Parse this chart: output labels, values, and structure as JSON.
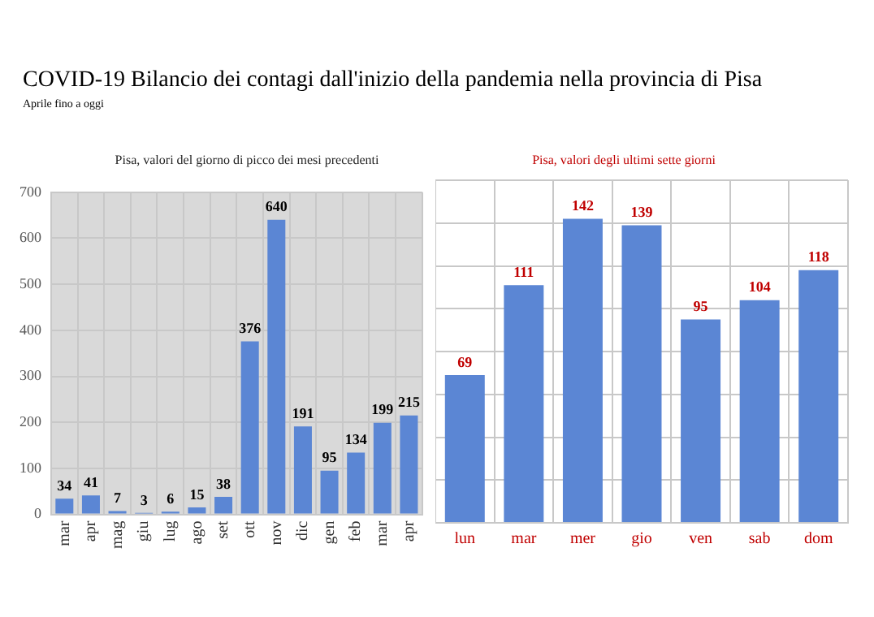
{
  "chart_data": [
    {
      "type": "other",
      "title": "COVID-19 Bilancio dei contagi dall'inizio della pandemia nella provincia di Pisa",
      "subtitle": "Aprile fino a oggi"
    },
    {
      "type": "bar",
      "title": "Pisa, valori del giorno di picco dei mesi precedenti",
      "categories": [
        "mar",
        "apr",
        "mag",
        "giu",
        "lug",
        "ago",
        "set",
        "ott",
        "nov",
        "dic",
        "gen",
        "feb",
        "mar",
        "apr"
      ],
      "values": [
        34,
        41,
        7,
        3,
        6,
        15,
        38,
        376,
        640,
        191,
        95,
        134,
        199,
        215
      ],
      "color": "#5b86d4",
      "ylim": [
        0,
        700
      ],
      "yticks": [
        0,
        100,
        200,
        300,
        400,
        500,
        600,
        700
      ],
      "grid": true,
      "data_labels": true
    },
    {
      "type": "bar",
      "title": "Pisa, valori degli ultimi sette giorni",
      "categories": [
        "lun",
        "mar",
        "mer",
        "gio",
        "ven",
        "sab",
        "dom"
      ],
      "values": [
        69,
        111,
        142,
        139,
        95,
        104,
        118
      ],
      "color": "#5b86d4",
      "tick_labels": "x",
      "grid": true,
      "data_labels": true
    }
  ]
}
